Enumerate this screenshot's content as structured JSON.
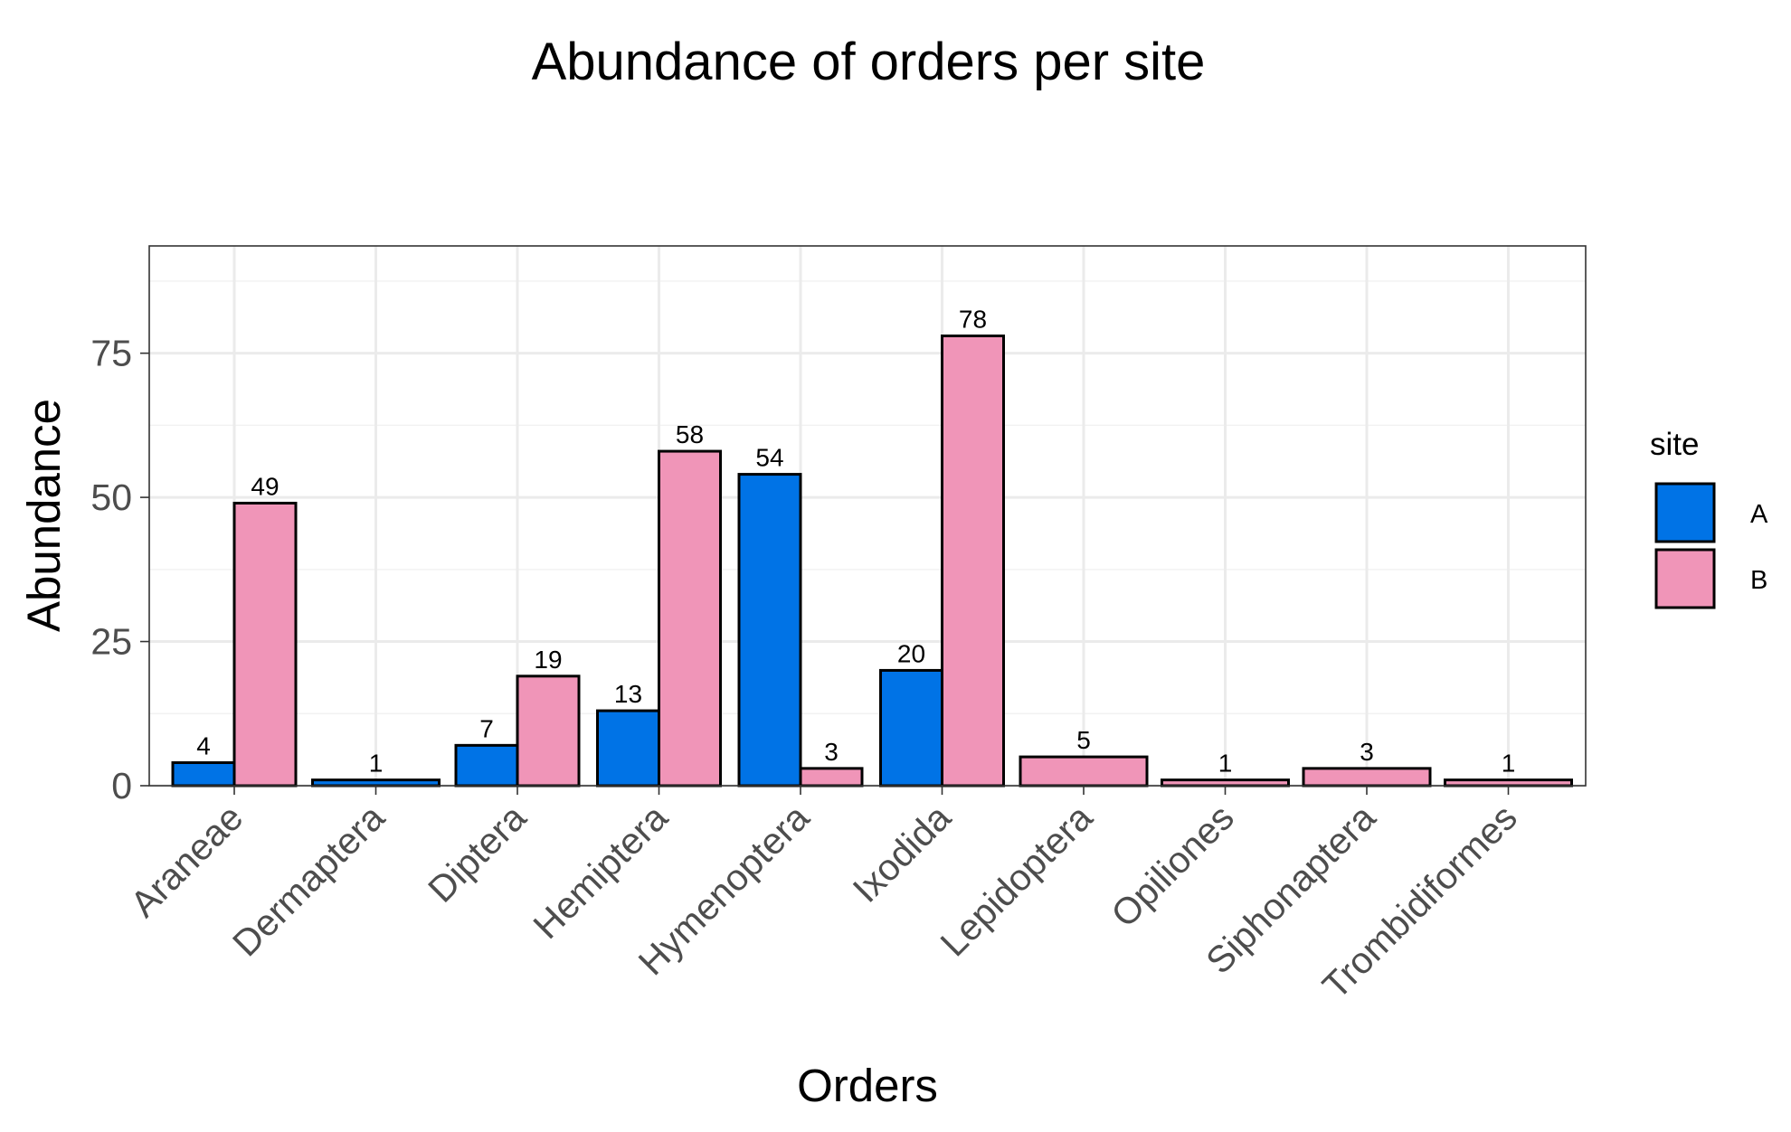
{
  "chart_data": {
    "type": "bar",
    "title": "Abundance of orders per site",
    "xlabel": "Orders",
    "ylabel": "Abundance",
    "categories": [
      "Araneae",
      "Dermaptera",
      "Diptera",
      "Hemiptera",
      "Hymenoptera",
      "Ixodida",
      "Lepidoptera",
      "Opiliones",
      "Siphonaptera",
      "Trombidiformes"
    ],
    "series": [
      {
        "name": "A",
        "color": "#0073e6",
        "values": [
          4,
          1,
          7,
          13,
          54,
          20,
          null,
          null,
          null,
          null
        ]
      },
      {
        "name": "B",
        "color": "#f095b8",
        "values": [
          49,
          null,
          19,
          58,
          3,
          78,
          5,
          1,
          3,
          1
        ]
      }
    ],
    "ylim": [
      0,
      93.6
    ],
    "yticks": [
      0,
      25,
      50,
      75
    ],
    "grid": true,
    "legend": {
      "title": "site",
      "position": "right"
    }
  }
}
